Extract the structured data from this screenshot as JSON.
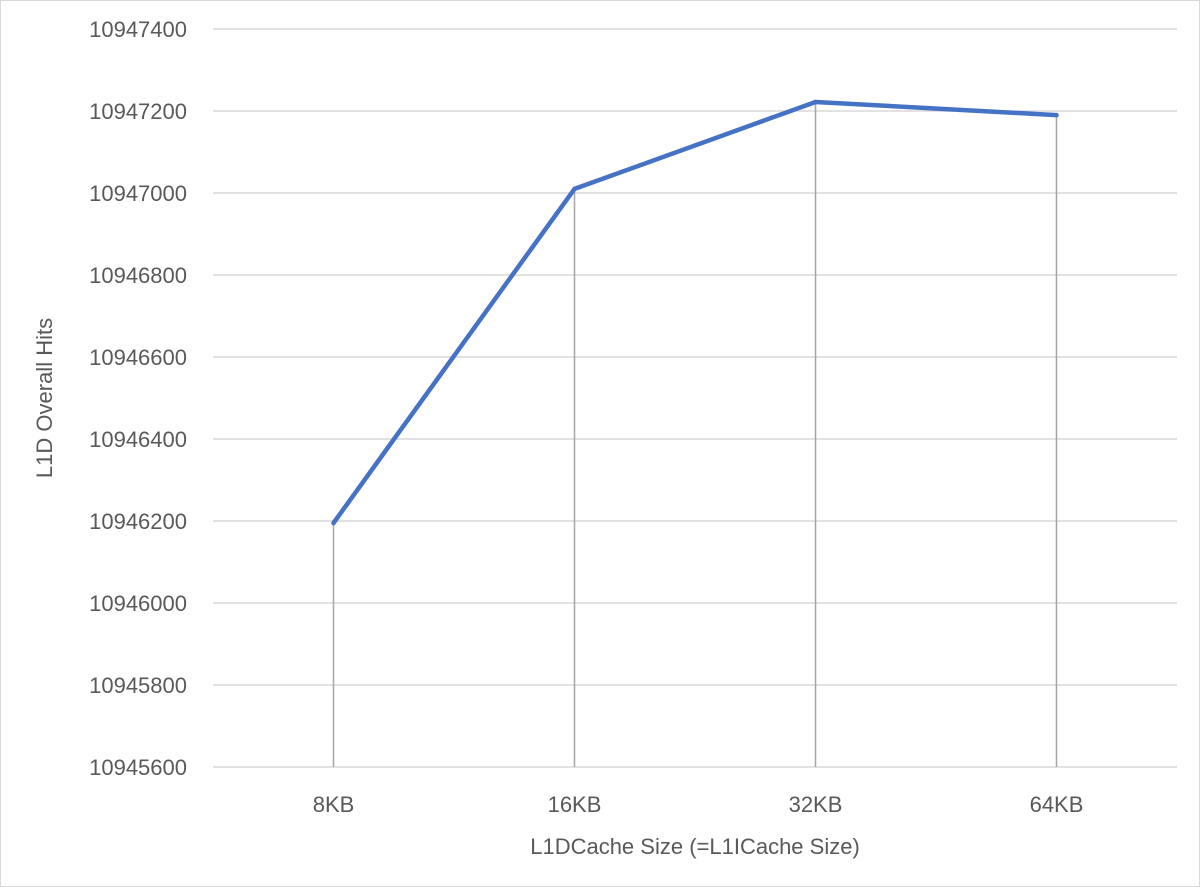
{
  "chart_data": {
    "type": "line",
    "title": "",
    "xlabel": "L1DCache Size (=L1ICache Size)",
    "ylabel": "L1D Overall Hits",
    "categories": [
      "8KB",
      "16KB",
      "32KB",
      "64KB"
    ],
    "series": [
      {
        "values": [
          10946195,
          10947010,
          10947222,
          10947190
        ],
        "color": "#4472C4"
      }
    ],
    "ylim": [
      10945600,
      10947400
    ],
    "yticks": [
      10945600,
      10945800,
      10946000,
      10946200,
      10946400,
      10946600,
      10946800,
      10947000,
      10947200,
      10947400
    ],
    "y_tick_labels": [
      "10945600",
      "10945800",
      "10946000",
      "10946200",
      "10946400",
      "10946600",
      "10946800",
      "10947000",
      "10947200",
      "10947400"
    ],
    "grid": true,
    "drop_lines": true,
    "legend": "none",
    "colors": {
      "gridline": "#d9d9d9",
      "drop_line": "#a6a6a6",
      "text": "#595959"
    }
  }
}
